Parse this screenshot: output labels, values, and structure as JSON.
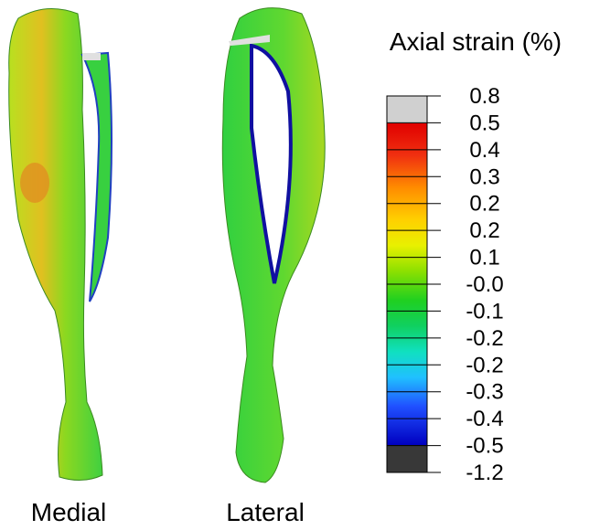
{
  "legend": {
    "title": "Axial strain (%)",
    "ticks": [
      "0.8",
      "0.5",
      "0.4",
      "0.3",
      "0.2",
      "0.2",
      "0.1",
      "-0.0",
      "-0.1",
      "-0.2",
      "-0.2",
      "-0.3",
      "-0.4",
      "-0.5",
      "-1.2"
    ]
  },
  "views": [
    {
      "label": "Medial"
    },
    {
      "label": "Lateral"
    }
  ]
}
